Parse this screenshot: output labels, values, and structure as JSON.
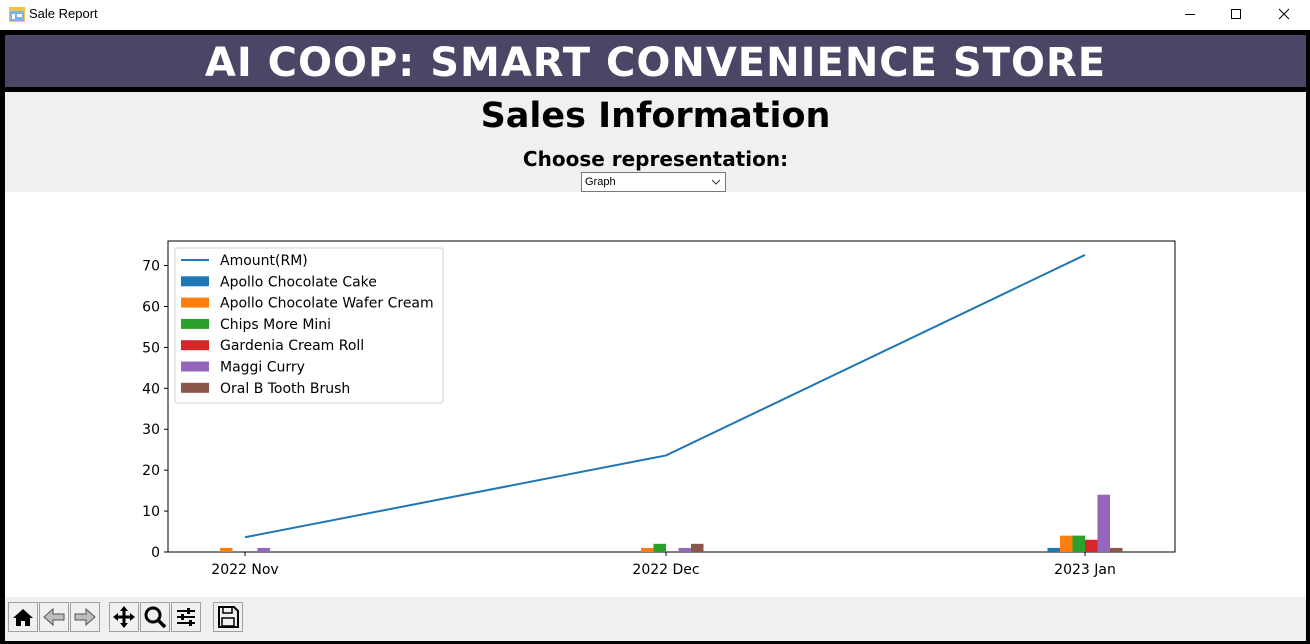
{
  "window": {
    "title": "Sale Report"
  },
  "banner": {
    "title": "AI COOP: SMART CONVENIENCE STORE"
  },
  "info": {
    "title": "Sales Information",
    "subtitle": "Choose representation:"
  },
  "representation_select": {
    "value": "Graph"
  },
  "colors": {
    "banner_bg": "#4a4766",
    "line": "#1f77b4",
    "series": [
      "#1f77b4",
      "#ff7f0e",
      "#2ca02c",
      "#d62728",
      "#9467bd",
      "#8c564b"
    ]
  },
  "chart_data": {
    "type": "bar",
    "categories": [
      "2022 Nov",
      "2022 Dec",
      "2023 Jan"
    ],
    "ylim": [
      0,
      76
    ],
    "yticks": [
      0,
      10,
      20,
      30,
      40,
      50,
      60,
      70
    ],
    "legend_position": "upper-left",
    "line_series": {
      "name": "Amount(RM)",
      "values": [
        3.6,
        23.6,
        72.6
      ]
    },
    "series": [
      {
        "name": "Apollo Chocolate Cake",
        "values": [
          0,
          0,
          1
        ]
      },
      {
        "name": "Apollo Chocolate Wafer Cream",
        "values": [
          1,
          1,
          4
        ]
      },
      {
        "name": "Chips More Mini",
        "values": [
          0,
          2,
          4
        ]
      },
      {
        "name": "Gardenia Cream Roll",
        "values": [
          0,
          0,
          3
        ]
      },
      {
        "name": "Maggi Curry",
        "values": [
          1,
          1,
          14
        ]
      },
      {
        "name": "Oral B Tooth Brush",
        "values": [
          0,
          2,
          1
        ]
      }
    ]
  },
  "toolbar": {
    "buttons": [
      "home-icon",
      "back-arrow-icon",
      "forward-arrow-icon",
      "pan-icon",
      "zoom-icon",
      "configure-icon",
      "save-icon"
    ]
  }
}
